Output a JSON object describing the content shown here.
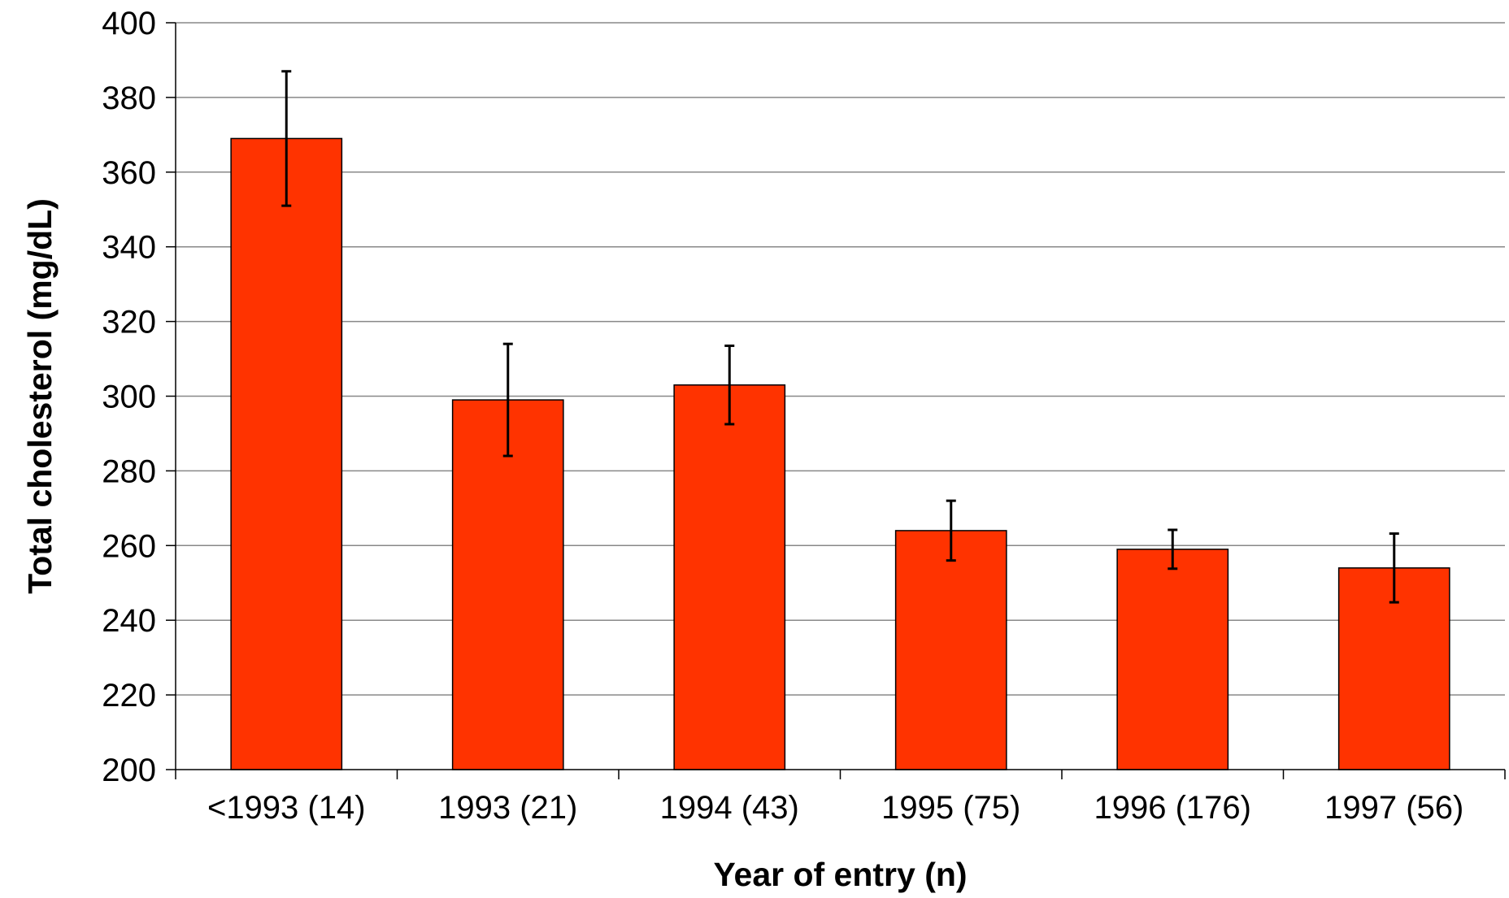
{
  "chart_data": {
    "type": "bar",
    "title": "",
    "xlabel": "Year of entry (n)",
    "ylabel": "Total cholesterol (mg/dL)",
    "categories": [
      "<1993 (14)",
      "1993 (21)",
      "1994 (43)",
      "1995 (75)",
      "1996 (176)",
      "1997 (56)"
    ],
    "series": [
      {
        "values": [
          369,
          299,
          303,
          264,
          259,
          254
        ],
        "error_high": [
          387,
          314,
          313.5,
          272,
          264.2,
          263.2
        ],
        "error_low": [
          351,
          284,
          292.5,
          256,
          253.8,
          244.8
        ],
        "color": "#FF3300"
      }
    ],
    "ylim": [
      200,
      400
    ],
    "yticks": [
      200,
      220,
      240,
      260,
      280,
      300,
      320,
      340,
      360,
      380,
      400
    ],
    "grid": true,
    "colors": {
      "bar_fill": "#FF3300",
      "bar_stroke": "#000000",
      "gridline": "#888888",
      "axis": "#000000",
      "error_bar": "#000000"
    }
  }
}
